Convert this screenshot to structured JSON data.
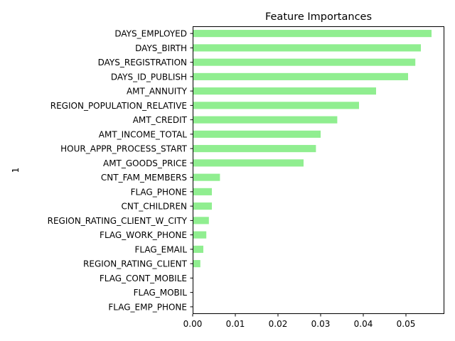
{
  "chart_data": {
    "type": "bar",
    "orientation": "horizontal",
    "title": "Feature Importances",
    "xlabel": "",
    "ylabel": "1",
    "xlim": [
      0,
      0.059
    ],
    "xticks": [
      0.0,
      0.01,
      0.02,
      0.03,
      0.04,
      0.05
    ],
    "xtick_labels": [
      "0.00",
      "0.01",
      "0.02",
      "0.03",
      "0.04",
      "0.05"
    ],
    "grid": false,
    "legend": "none",
    "bar_color": "#90ee90",
    "categories": [
      "DAYS_EMPLOYED",
      "DAYS_BIRTH",
      "DAYS_REGISTRATION",
      "DAYS_ID_PUBLISH",
      "AMT_ANNUITY",
      "REGION_POPULATION_RELATIVE",
      "AMT_CREDIT",
      "AMT_INCOME_TOTAL",
      "HOUR_APPR_PROCESS_START",
      "AMT_GOODS_PRICE",
      "CNT_FAM_MEMBERS",
      "FLAG_PHONE",
      "CNT_CHILDREN",
      "REGION_RATING_CLIENT_W_CITY",
      "FLAG_WORK_PHONE",
      "FLAG_EMAIL",
      "REGION_RATING_CLIENT",
      "FLAG_CONT_MOBILE",
      "FLAG_MOBIL",
      "FLAG_EMP_PHONE"
    ],
    "values": [
      0.056,
      0.0535,
      0.0522,
      0.0505,
      0.043,
      0.039,
      0.0339,
      0.03,
      0.0289,
      0.026,
      0.0064,
      0.0045,
      0.0045,
      0.0038,
      0.0032,
      0.0025,
      0.0018,
      0.0,
      0.0,
      0.0
    ]
  }
}
